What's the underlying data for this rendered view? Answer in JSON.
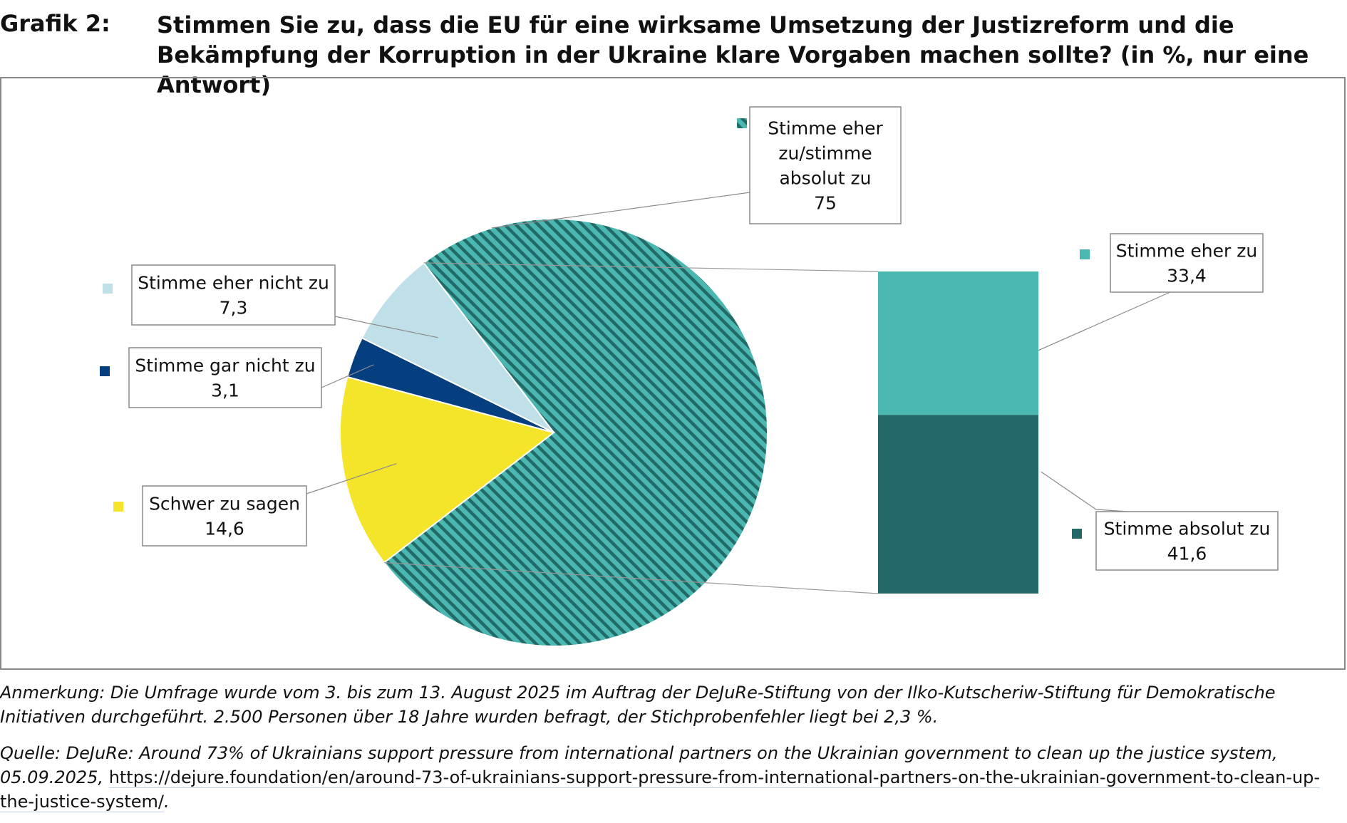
{
  "header": {
    "label": "Grafik 2:",
    "title": "Stimmen Sie zu, dass die EU für eine wirksame Umsetzung der Justizreform und die Bekämpfung der Korruption in der Ukraine klare Vorgaben machen sollte? (in %, nur eine Antwort)"
  },
  "chart_data": {
    "type": "pie",
    "title": "Stimmen Sie zu, dass die EU für eine wirksame Umsetzung der Justizreform und die Bekämpfung der Korruption in der Ukraine klare Vorgaben machen sollte? (in %, nur eine Antwort)",
    "unit": "%",
    "slices": [
      {
        "label": "Stimme eher zu/stimme absolut zu",
        "value": 75,
        "color": "#4ab8b0",
        "color2": "#226a68",
        "pattern": "diagonal-stripes",
        "value_text": "75"
      },
      {
        "label": "Schwer zu sagen",
        "value": 14.6,
        "color": "#f5e52a",
        "value_text": "14,6"
      },
      {
        "label": "Stimme gar nicht zu",
        "value": 3.1,
        "color": "#063f80",
        "value_text": "3,1"
      },
      {
        "label": "Stimme eher nicht zu",
        "value": 7.3,
        "color": "#bfe0e8",
        "value_text": "7,3"
      }
    ],
    "breakdown": {
      "of": "Stimme eher zu/stimme absolut zu",
      "type": "stacked-bar",
      "segments": [
        {
          "label": "Stimme eher zu",
          "value": 33.4,
          "color": "#4ab8b0",
          "value_text": "33,4"
        },
        {
          "label": "Stimme absolut zu",
          "value": 41.6,
          "color": "#23696a",
          "value_text": "41,6"
        }
      ]
    },
    "label_lines": {
      "Stimme eher zu/stimme absolut zu": [
        "Stimme eher",
        "zu/stimme",
        "absolut zu"
      ]
    }
  },
  "notes": {
    "anmerkung": "Anmerkung: Die Umfrage wurde vom 3. bis zum 13. August 2025 im Auftrag der DeJuRe-Stiftung von der Ilko-Kutscheriw-Stiftung für Demokratische Initiativen durchgeführt. 2.500 Personen über 18 Jahre wurden befragt, der Stichprobenfehler liegt bei 2,3 %.",
    "quelle": "Quelle: DeJuRe: Around 73% of Ukrainians support pressure from international partners on the Ukrainian government to clean up the justice system, 05.09.2025,",
    "url": "https://dejure.foundation/en/around-73-of-ukrainians-support-pressure-from-international-partners-on-the-ukrainian-government-to-clean-up-the-justice-system/",
    "url_suffix": "."
  }
}
